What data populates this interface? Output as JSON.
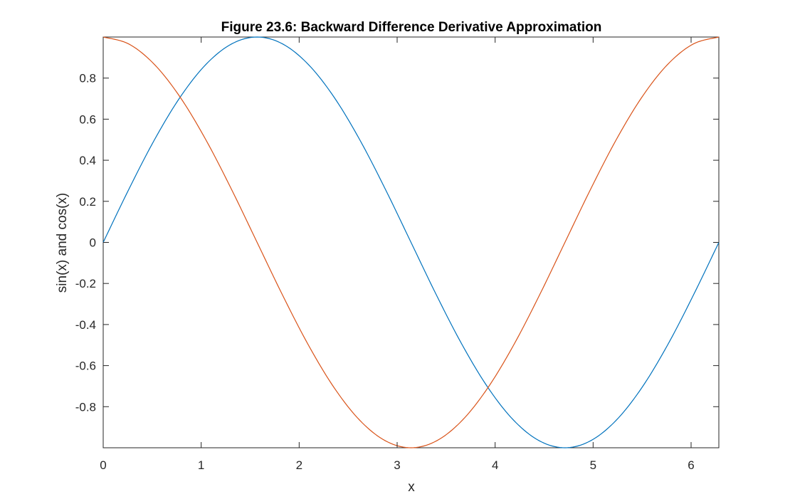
{
  "chart_data": {
    "type": "line",
    "title": "Figure 23.6: Backward Difference Derivative Approximation",
    "xlabel": "x",
    "ylabel": "sin(x) and cos(x)",
    "xlim": [
      0,
      6.2832
    ],
    "ylim": [
      -1,
      1
    ],
    "x_ticks": [
      0,
      1,
      2,
      3,
      4,
      5,
      6
    ],
    "x_tick_labels": [
      "0",
      "1",
      "2",
      "3",
      "4",
      "5",
      "6"
    ],
    "y_ticks": [
      -0.8,
      -0.6,
      -0.4,
      -0.2,
      0,
      0.2,
      0.4,
      0.6,
      0.8
    ],
    "y_tick_labels": [
      "-0.8",
      "-0.6",
      "-0.4",
      "-0.2",
      "0",
      "0.2",
      "0.4",
      "0.6",
      "0.8"
    ],
    "grid": false,
    "series": [
      {
        "color": "#0072BD",
        "x": [
          0,
          0.2618,
          0.5236,
          0.7854,
          1.0472,
          1.309,
          1.5708,
          1.8326,
          2.0944,
          2.3562,
          2.618,
          2.8798,
          3.1416,
          3.4034,
          3.6652,
          3.927,
          4.1888,
          4.4506,
          4.7124,
          4.9742,
          5.236,
          5.4978,
          5.7596,
          6.0214,
          6.2832
        ],
        "values": [
          0,
          0.2588,
          0.5,
          0.7071,
          0.866,
          0.9659,
          1,
          0.9659,
          0.866,
          0.7071,
          0.5,
          0.2588,
          0,
          -0.2588,
          -0.5,
          -0.7071,
          -0.866,
          -0.9659,
          -1,
          -0.9659,
          -0.866,
          -0.7071,
          -0.5,
          -0.2588,
          0
        ]
      },
      {
        "color": "#D95319",
        "x": [
          0,
          0.2618,
          0.5236,
          0.7854,
          1.0472,
          1.309,
          1.5708,
          1.8326,
          2.0944,
          2.3562,
          2.618,
          2.8798,
          3.1416,
          3.4034,
          3.6652,
          3.927,
          4.1888,
          4.4506,
          4.7124,
          4.9742,
          5.236,
          5.4978,
          5.7596,
          6.0214,
          6.2832
        ],
        "values": [
          1,
          0.9659,
          0.866,
          0.7071,
          0.5,
          0.2588,
          0,
          -0.2588,
          -0.5,
          -0.7071,
          -0.866,
          -0.9659,
          -1,
          -0.9659,
          -0.866,
          -0.7071,
          -0.5,
          -0.2588,
          0,
          0.2588,
          0.5,
          0.7071,
          0.866,
          0.9659,
          1
        ]
      }
    ]
  }
}
